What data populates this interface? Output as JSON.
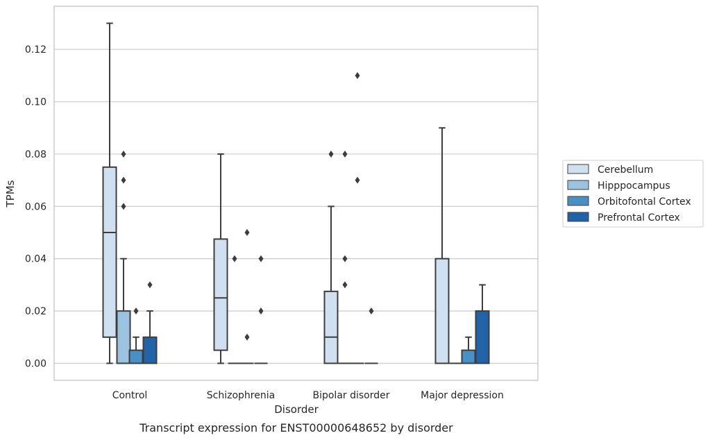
{
  "chart_data": {
    "type": "boxplot",
    "caption": "Transcript expression for ENST00000648652 by disorder",
    "xlabel": "Disorder",
    "ylabel": "TPMs",
    "ylim": [
      -0.0065,
      0.1365
    ],
    "yticks": [
      0.0,
      0.02,
      0.04,
      0.06,
      0.08,
      0.1,
      0.12
    ],
    "ytick_labels": [
      "0.00",
      "0.02",
      "0.04",
      "0.06",
      "0.08",
      "0.10",
      "0.12"
    ],
    "grid": "horizontal",
    "legend_position": "right",
    "categories": [
      "Control",
      "Schizophrenia",
      "Bipolar disorder",
      "Major depression"
    ],
    "series": [
      {
        "name": "Cerebellum",
        "color": "#d1e0f0",
        "boxes": [
          {
            "q1": 0.01,
            "median": 0.05,
            "q3": 0.075,
            "whislo": 0.0,
            "whishi": 0.13,
            "fliers": []
          },
          {
            "q1": 0.005,
            "median": 0.025,
            "q3": 0.0475,
            "whislo": 0.0,
            "whishi": 0.08,
            "fliers": []
          },
          {
            "q1": 0.0,
            "median": 0.01,
            "q3": 0.0275,
            "whislo": 0.0,
            "whishi": 0.06,
            "fliers": [
              0.08
            ]
          },
          {
            "q1": 0.0,
            "median": 0.0,
            "q3": 0.04,
            "whislo": 0.0,
            "whishi": 0.09,
            "fliers": []
          }
        ]
      },
      {
        "name": "Hipppocampus",
        "color": "#9bc3e0",
        "boxes": [
          {
            "q1": 0.0,
            "median": 0.0,
            "q3": 0.02,
            "whislo": 0.0,
            "whishi": 0.04,
            "fliers": [
              0.06,
              0.07,
              0.08
            ]
          },
          {
            "q1": 0.0,
            "median": 0.0,
            "q3": 0.0,
            "whislo": 0.0,
            "whishi": 0.0,
            "fliers": [
              0.04
            ]
          },
          {
            "q1": 0.0,
            "median": 0.0,
            "q3": 0.0,
            "whislo": 0.0,
            "whishi": 0.0,
            "fliers": [
              0.03,
              0.04,
              0.08
            ]
          },
          {
            "q1": 0.0,
            "median": 0.0,
            "q3": 0.0,
            "whislo": 0.0,
            "whishi": 0.0,
            "fliers": []
          }
        ]
      },
      {
        "name": "Orbitofontal Cortex",
        "color": "#4a90c4",
        "boxes": [
          {
            "q1": 0.0,
            "median": 0.0,
            "q3": 0.005,
            "whislo": 0.0,
            "whishi": 0.01,
            "fliers": [
              0.02
            ]
          },
          {
            "q1": 0.0,
            "median": 0.0,
            "q3": 0.0,
            "whislo": 0.0,
            "whishi": 0.0,
            "fliers": [
              0.01,
              0.05
            ]
          },
          {
            "q1": 0.0,
            "median": 0.0,
            "q3": 0.0,
            "whislo": 0.0,
            "whishi": 0.0,
            "fliers": [
              0.07,
              0.11
            ]
          },
          {
            "q1": 0.0,
            "median": 0.0,
            "q3": 0.005,
            "whislo": 0.0,
            "whishi": 0.01,
            "fliers": []
          }
        ]
      },
      {
        "name": "Prefrontal Cortex",
        "color": "#2163a6",
        "boxes": [
          {
            "q1": 0.0,
            "median": 0.0,
            "q3": 0.01,
            "whislo": 0.0,
            "whishi": 0.02,
            "fliers": [
              0.03
            ]
          },
          {
            "q1": 0.0,
            "median": 0.0,
            "q3": 0.0,
            "whislo": 0.0,
            "whishi": 0.0,
            "fliers": [
              0.02,
              0.04
            ]
          },
          {
            "q1": 0.0,
            "median": 0.0,
            "q3": 0.0,
            "whislo": 0.0,
            "whishi": 0.0,
            "fliers": [
              0.02
            ]
          },
          {
            "q1": 0.0,
            "median": 0.0,
            "q3": 0.02,
            "whislo": 0.0,
            "whishi": 0.03,
            "fliers": []
          }
        ]
      }
    ],
    "style": {
      "edge_color": "#3d3d3d",
      "grid_color": "#cccccc",
      "frame_color": "#cccccc",
      "flier_color": "#3d3d3d"
    }
  }
}
